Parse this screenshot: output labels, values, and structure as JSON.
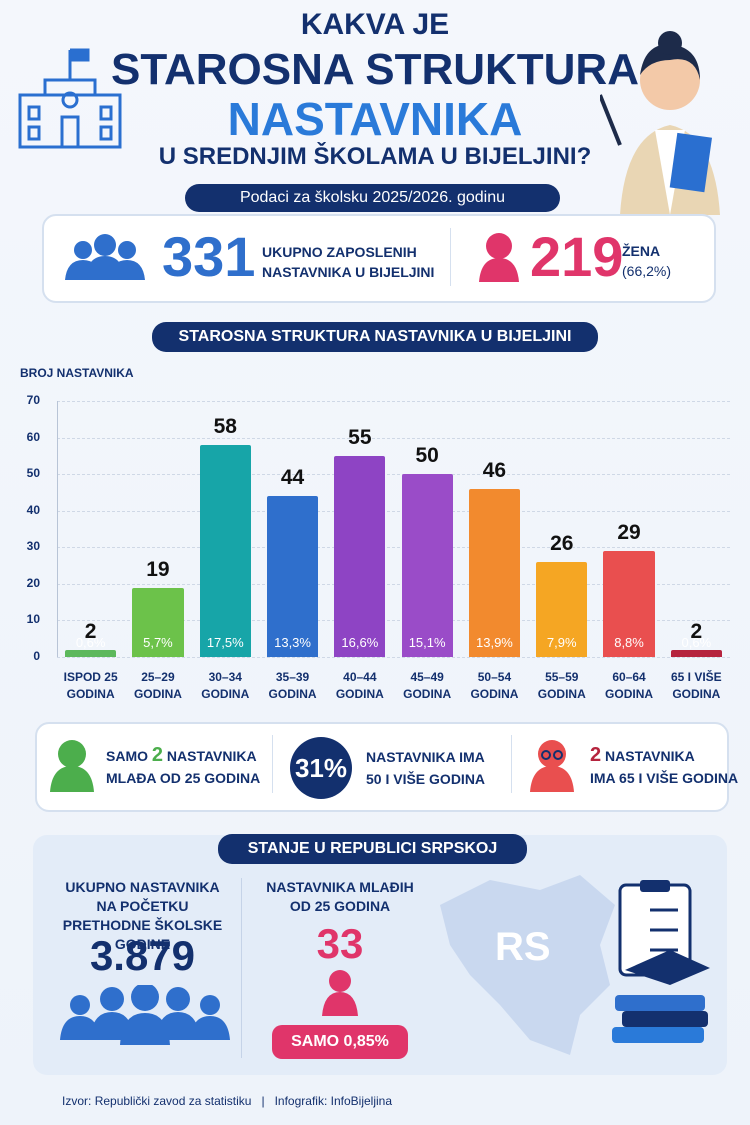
{
  "header": {
    "line1": "KAKVA JE",
    "line2": "STAROSNA STRUKTURA",
    "line3": "NASTAVNIKA",
    "line4": "U SREDNJIM ŠKOLAMA U BIJELJINI?",
    "period": "Podaci za školsku 2025/2026. godinu"
  },
  "summary": {
    "total": "331",
    "total_label": "UKUPNO ZAPOSLENIH NASTAVNIKA U BIJELJINI",
    "women": "219",
    "women_label": "ŽENA",
    "women_share": "(66,2%)"
  },
  "chart_data": {
    "type": "bar",
    "title": "STAROSNA STRUKTURA NASTAVNIKA U BIJELJINI",
    "y_label": "BROJ NASTAVNIKA",
    "categories": [
      "ISPOD 25 GODINA",
      "25–29 GODINA",
      "30–34 GODINA",
      "35–39 GODINA",
      "40–44 GODINA",
      "45–49 GODINA",
      "50–54 GODINA",
      "55–59 GODINA",
      "60–64 GODINA",
      "65 I VIŠE GODINA"
    ],
    "values": [
      2,
      19,
      58,
      44,
      55,
      50,
      46,
      26,
      29,
      2
    ],
    "share_labels": [
      "0,6%",
      "5,7%",
      "17,5%",
      "13,3%",
      "16,6%",
      "15,1%",
      "13,9%",
      "7,9%",
      "8,8%",
      "0,6%"
    ],
    "colors": [
      "#5cb85c",
      "#6cc24a",
      "#17a5a8",
      "#2f6fcc",
      "#8e44c4",
      "#9a4cc8",
      "#f28a2e",
      "#f5a623",
      "#e94f4f",
      "#b5243e"
    ],
    "ylim": [
      0,
      70
    ],
    "yticks": [
      0,
      10,
      20,
      30,
      40,
      50,
      60,
      70
    ],
    "grid": true
  },
  "facts": {
    "f1_pre": "SAMO",
    "f1_num": "2",
    "f1_post": "NASTAVNIKA",
    "f1_line2": "MLAĐA OD 25 GODINA",
    "f2_num": "31%",
    "f2_text": "NASTAVNIKA IMA 50 I VIŠE GODINA",
    "f3_num": "2",
    "f3_post": "NASTAVNIKA",
    "f3_line2": "IMA 65 I VIŠE GODINA"
  },
  "rs": {
    "title": "STANJE U REPUBLICI SRPSKOJ",
    "total_label": "UKUPNO NASTAVNIKA NA POČETKU PRETHODNE ŠKOLSKE GODINE",
    "total": "3.879",
    "young_label": "NASTAVNIKA MLAĐIH OD 25 GODINA",
    "young": "33",
    "young_share": "SAMO 0,85%",
    "map_label": "RS"
  },
  "footer": {
    "source_label": "Izvor:",
    "source": "Republički zavod za statistiku",
    "sep": "|",
    "author_label": "Infografik:",
    "author": "InfoBijeljina"
  }
}
